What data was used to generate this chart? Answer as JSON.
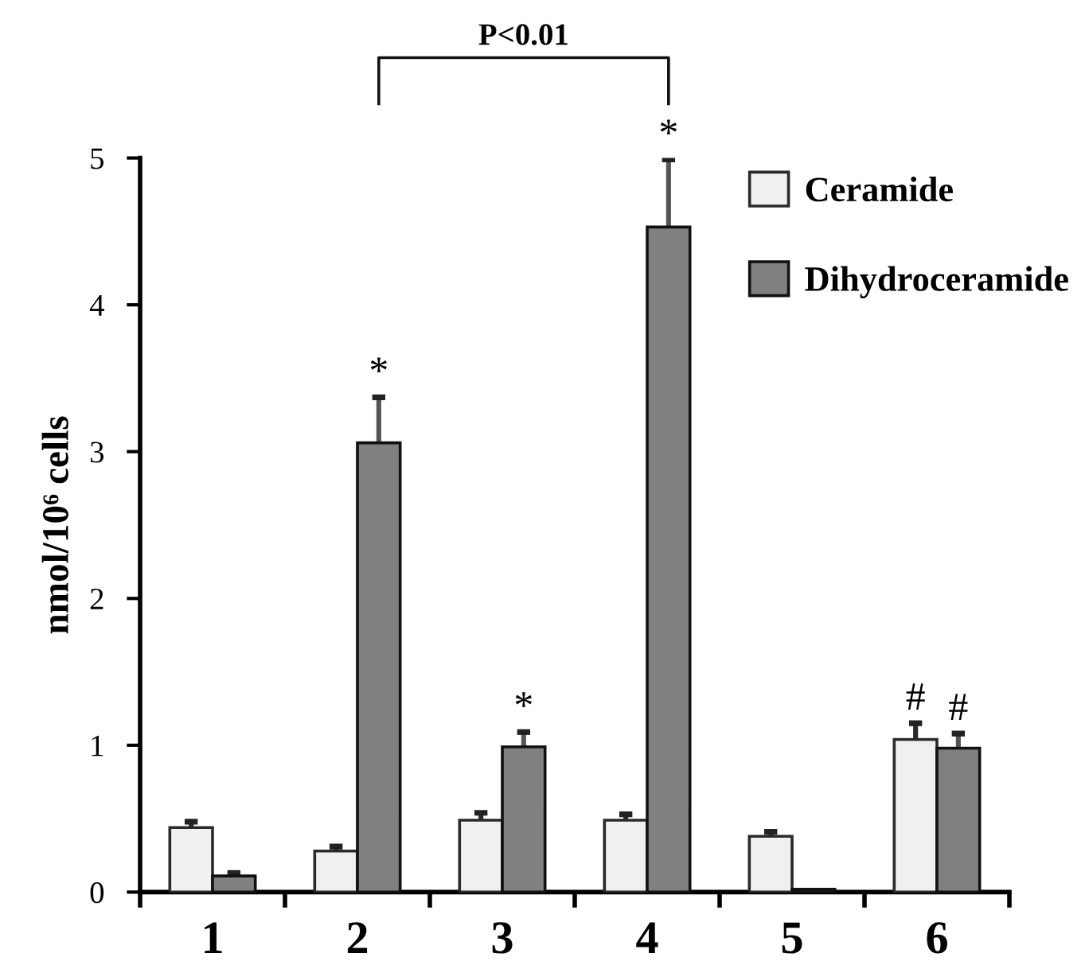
{
  "chart_data": {
    "type": "bar",
    "categories": [
      "1",
      "2",
      "3",
      "4",
      "5",
      "6"
    ],
    "ylabel": "nmol/10⁶ cells",
    "ylim": [
      0,
      5
    ],
    "yticks": [
      0,
      1,
      2,
      3,
      4,
      5
    ],
    "legend": "top right",
    "series": [
      {
        "name": "Ceramide",
        "color": "#f0f0f0",
        "values": [
          0.44,
          0.28,
          0.49,
          0.49,
          0.38,
          1.04
        ],
        "errors": [
          [
            0.44,
            0.48
          ],
          [
            0.28,
            0.31
          ],
          [
            0.49,
            0.54
          ],
          [
            0.49,
            0.53
          ],
          [
            0.38,
            0.41
          ],
          [
            1.04,
            1.15
          ]
        ]
      },
      {
        "name": "Dihydroceramide",
        "color": "#808080",
        "values": [
          0.11,
          3.06,
          0.99,
          4.53,
          0.02,
          0.98
        ],
        "errors": [
          [
            0.11,
            0.13
          ],
          [
            3.06,
            3.37
          ],
          [
            0.99,
            1.09
          ],
          [
            4.53,
            4.99
          ],
          null,
          [
            0.98,
            1.08
          ]
        ]
      }
    ],
    "annotations": [
      "P<0.01",
      {
        "text": "*",
        "x": "2",
        "y": 3.06
      },
      {
        "text": "*",
        "x": "3",
        "y": 0.99
      },
      {
        "text": "*",
        "x": "4",
        "y": 4.53
      },
      {
        "text": "#",
        "x": "6",
        "y": 1.04
      },
      {
        "text": "#",
        "x": "6",
        "y": 0.98
      }
    ]
  }
}
